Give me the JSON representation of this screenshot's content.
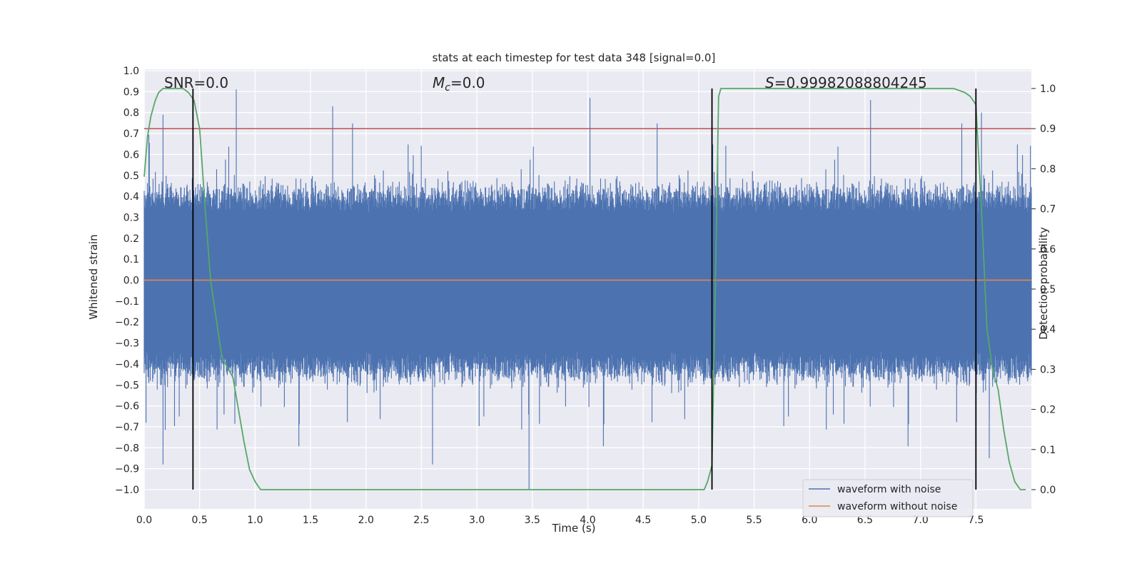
{
  "chart_data": {
    "type": "line",
    "title": "stats at each timestep for test data 348 [signal=0.0]",
    "xlabel": "Time (s)",
    "ylabel": "Whitened strain",
    "y2label": "Detection probability",
    "xlim": [
      0.0,
      8.0
    ],
    "ylim": [
      -1.0,
      1.0
    ],
    "y2lim": [
      -0.05,
      1.05
    ],
    "x_ticks": [
      "0.0",
      "0.5",
      "1.0",
      "1.5",
      "2.0",
      "2.5",
      "3.0",
      "3.5",
      "4.0",
      "4.5",
      "5.0",
      "5.5",
      "6.0",
      "6.5",
      "7.0",
      "7.5"
    ],
    "y_ticks": [
      "1.0",
      "0.9",
      "0.8",
      "0.7",
      "0.6",
      "0.5",
      "0.4",
      "0.3",
      "0.2",
      "0.1",
      "0.0",
      "−0.1",
      "−0.2",
      "−0.3",
      "−0.4",
      "−0.5",
      "−0.6",
      "−0.7",
      "−0.8",
      "−0.9",
      "−1.0"
    ],
    "y2_ticks": [
      "1.0",
      "0.9",
      "0.8",
      "0.7",
      "0.6",
      "0.5",
      "0.4",
      "0.3",
      "0.2",
      "0.1",
      "0.0"
    ],
    "annotations": {
      "snr": "SNR=0.0",
      "mc_symbol": "M",
      "mc_sub": "c",
      "mc_value": "=0.0",
      "s_symbol": "S",
      "s_value": "=0.99982088804245"
    },
    "threshold_y2": 0.9,
    "vertical_lines_x": [
      0.44,
      5.12,
      7.5
    ],
    "series": [
      {
        "name": "waveform with noise",
        "color": "#4c72b0",
        "envelope": {
          "core_band": [
            -0.36,
            0.34
          ],
          "spike_max": 0.91,
          "spike_min": -1.0
        }
      },
      {
        "name": "waveform without noise",
        "color": "#dd8452",
        "constant_y": 0.0
      },
      {
        "name": "detection probability",
        "color": "#55a868",
        "axis": "y2",
        "x": [
          0.0,
          0.03,
          0.06,
          0.1,
          0.13,
          0.17,
          0.2,
          0.25,
          0.3,
          0.35,
          0.4,
          0.45,
          0.5,
          0.55,
          0.6,
          0.7,
          0.8,
          0.9,
          0.95,
          1.0,
          1.05,
          1.1,
          1.5,
          2.0,
          3.0,
          4.0,
          4.5,
          5.0,
          5.05,
          5.08,
          5.12,
          5.15,
          5.18,
          5.2,
          5.25,
          5.5,
          6.0,
          6.5,
          7.0,
          7.3,
          7.4,
          7.45,
          7.5,
          7.55,
          7.6,
          7.65,
          7.7,
          7.75,
          7.8,
          7.85,
          7.9,
          7.95
        ],
        "values": [
          0.78,
          0.88,
          0.93,
          0.97,
          0.99,
          1.0,
          1.0,
          1.0,
          1.0,
          1.0,
          0.99,
          0.97,
          0.9,
          0.7,
          0.52,
          0.33,
          0.28,
          0.12,
          0.05,
          0.02,
          0.0,
          0.0,
          0.0,
          0.0,
          0.0,
          0.0,
          0.0,
          0.0,
          0.0,
          0.02,
          0.06,
          0.5,
          0.98,
          1.0,
          1.0,
          1.0,
          1.0,
          1.0,
          1.0,
          1.0,
          0.99,
          0.98,
          0.96,
          0.7,
          0.4,
          0.3,
          0.25,
          0.15,
          0.07,
          0.02,
          0.0,
          0.0
        ]
      }
    ],
    "legend": [
      "waveform with noise",
      "waveform without noise"
    ],
    "legend_position": "lower-right",
    "colors": {
      "background": "#eaeaf2",
      "grid": "#ffffff",
      "threshold": "#c44e52",
      "vline": "#000000"
    }
  }
}
